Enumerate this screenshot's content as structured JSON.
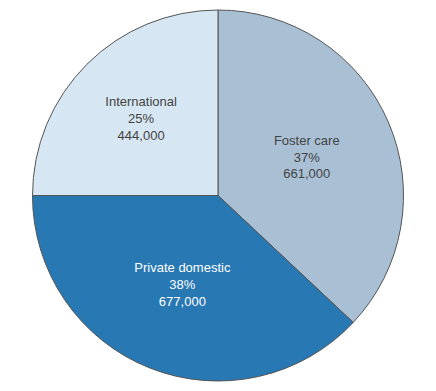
{
  "chart_data": {
    "type": "pie",
    "categories": [
      "Foster care",
      "Private domestic",
      "International"
    ],
    "values": [
      37,
      38,
      25
    ],
    "value_labels": [
      "37%",
      "38%",
      "25%"
    ],
    "counts": [
      661000,
      677000,
      444000
    ],
    "count_labels": [
      "661,000",
      "677,000",
      "444,000"
    ],
    "colors": [
      "#a8bfd4",
      "#2878b4",
      "#d6e6f2"
    ],
    "data_labels": true,
    "legend": false
  }
}
